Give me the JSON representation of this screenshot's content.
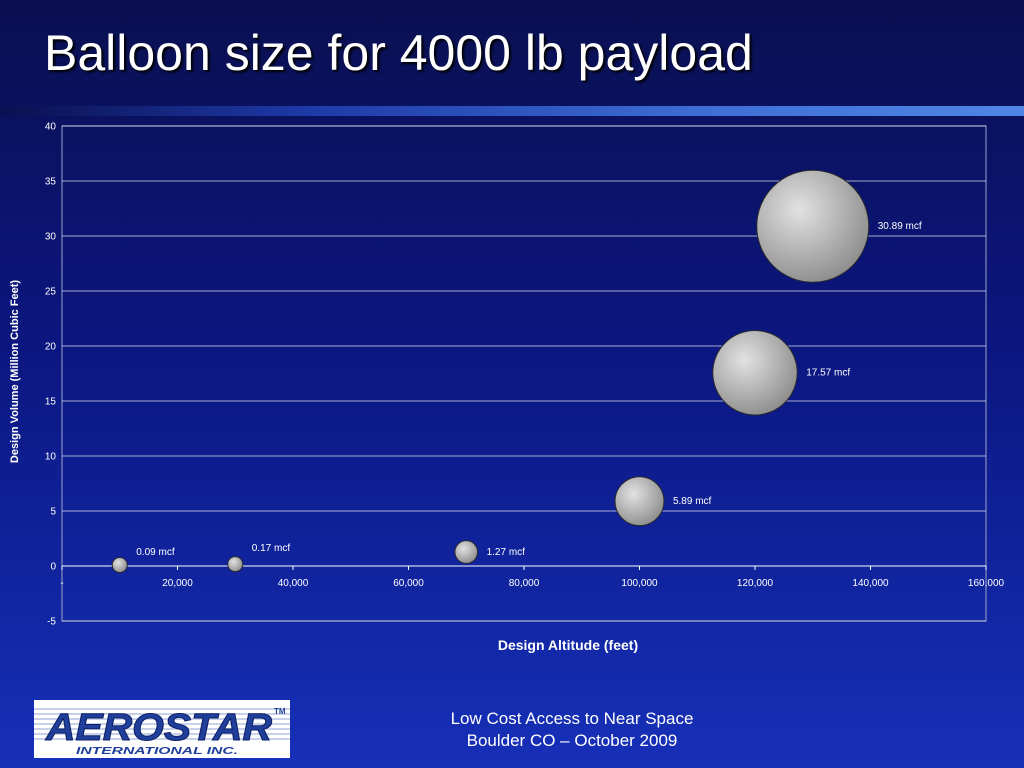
{
  "slide": {
    "title": "Balloon size for 4000 lb payload",
    "footer_line1": "Low Cost Access to Near Space",
    "footer_line2": "Boulder CO – October 2009"
  },
  "logo": {
    "wordmark": "AEROSTAR",
    "subtext": "INTERNATIONAL INC.",
    "trademark": "TM"
  },
  "colors": {
    "background": "#0b1680",
    "gridline": "#ffffff",
    "bubble_light": "#e2e2e2",
    "bubble_dark": "#8c8c8c",
    "logo_blue": "#1f3f9a"
  },
  "chart_data": {
    "type": "scatter",
    "variant": "bubble",
    "title": "",
    "xlabel": "Design Altitude (feet)",
    "ylabel": "Design Volume (Million Cubic Feet)",
    "xlim": [
      0,
      160000
    ],
    "ylim": [
      -5,
      40
    ],
    "x_ticks": [
      0,
      20000,
      40000,
      60000,
      80000,
      100000,
      120000,
      140000,
      160000
    ],
    "x_tick_labels": [
      "-",
      "20,000",
      "40,000",
      "60,000",
      "80,000",
      "100,000",
      "120,000",
      "140,000",
      "160,000"
    ],
    "y_ticks": [
      -5,
      0,
      5,
      10,
      15,
      20,
      25,
      30,
      35,
      40
    ],
    "y_tick_labels": [
      "-5",
      "0",
      "5",
      "10",
      "15",
      "20",
      "25",
      "30",
      "35",
      "40"
    ],
    "grid": "horizontal",
    "legend": "none",
    "points": [
      {
        "x": 10000,
        "y": 0.09,
        "size": 0.09,
        "label": "0.09 mcf"
      },
      {
        "x": 30000,
        "y": 0.17,
        "size": 0.17,
        "label": "0.17 mcf"
      },
      {
        "x": 70000,
        "y": 1.27,
        "size": 1.27,
        "label": "1.27 mcf"
      },
      {
        "x": 100000,
        "y": 5.89,
        "size": 5.89,
        "label": "5.89 mcf"
      },
      {
        "x": 120000,
        "y": 17.57,
        "size": 17.57,
        "label": "17.57 mcf"
      },
      {
        "x": 130000,
        "y": 30.89,
        "size": 30.89,
        "label": "30.89 mcf"
      }
    ]
  }
}
